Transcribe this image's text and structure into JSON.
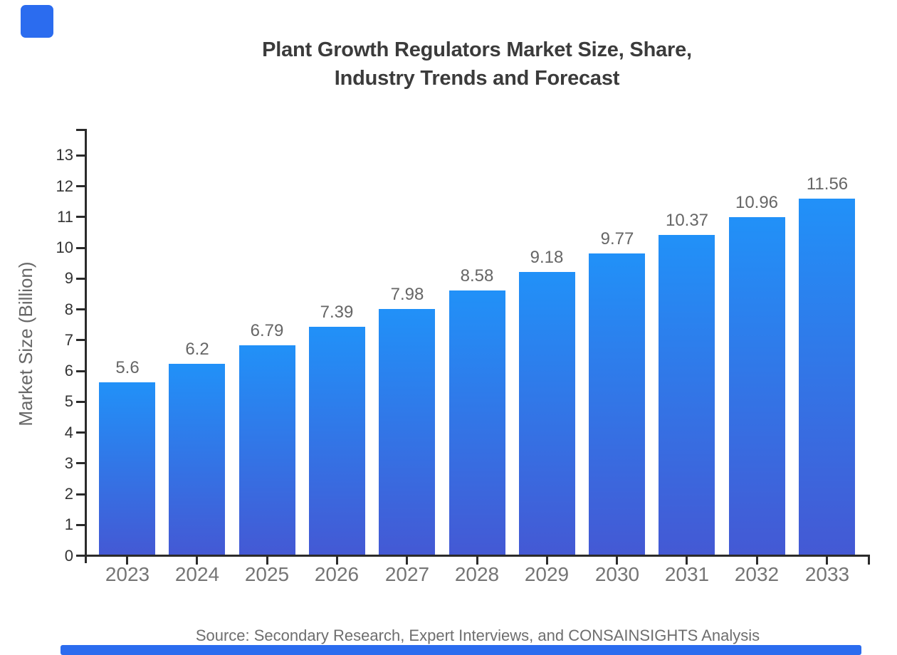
{
  "branding": {
    "accent_color": "#2B6CEF"
  },
  "chart_data": {
    "type": "bar",
    "title_lines": [
      "Plant Growth Regulators Market Size, Share,",
      "Industry Trends and Forecast"
    ],
    "categories": [
      "2023",
      "2024",
      "2025",
      "2026",
      "2027",
      "2028",
      "2029",
      "2030",
      "2031",
      "2032",
      "2033"
    ],
    "values": [
      5.6,
      6.2,
      6.79,
      7.39,
      7.98,
      8.58,
      9.18,
      9.77,
      10.37,
      10.96,
      11.56
    ],
    "value_labels": [
      "5.6",
      "6.2",
      "6.79",
      "7.39",
      "7.98",
      "8.58",
      "9.18",
      "9.77",
      "10.37",
      "10.96",
      "11.56"
    ],
    "xlabel": "",
    "ylabel": "Market Size (Billion)",
    "ylim": [
      0,
      13.86
    ],
    "yticks": [
      0,
      1,
      2,
      3,
      4,
      5,
      6,
      7,
      8,
      9,
      10,
      11,
      12,
      13
    ],
    "grid": false,
    "legend": "none",
    "bar_gradient_top": "#2191F8",
    "bar_gradient_bottom": "#4459D4",
    "axis_color": "#2B2B2B",
    "source_note": "Source: Secondary Research, Expert Interviews, and CONSAINSIGHTS Analysis"
  }
}
